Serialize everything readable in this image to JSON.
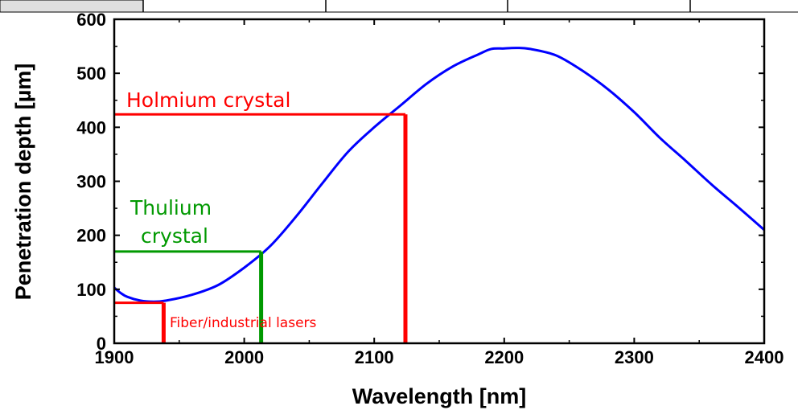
{
  "chart_data": {
    "type": "line",
    "title": "",
    "xlabel": "Wavelength [nm]",
    "ylabel": "Penetration depth [µm]",
    "xlim": [
      1900,
      2400
    ],
    "ylim": [
      0,
      600
    ],
    "xticks": [
      1900,
      2000,
      2100,
      2200,
      2300,
      2400
    ],
    "yticks": [
      0,
      100,
      200,
      300,
      400,
      500,
      600
    ],
    "grid": false,
    "legend": "none",
    "series": [
      {
        "color": "#0000ff",
        "x": [
          1900,
          1905,
          1910,
          1920,
          1930,
          1940,
          1960,
          1980,
          2000,
          2020,
          2040,
          2060,
          2080,
          2100,
          2120,
          2140,
          2160,
          2180,
          2190,
          2200,
          2210,
          2220,
          2240,
          2260,
          2280,
          2300,
          2320,
          2340,
          2360,
          2380,
          2400
        ],
        "y": [
          103,
          93,
          86,
          79,
          77,
          79,
          90,
          108,
          140,
          180,
          235,
          296,
          355,
          400,
          440,
          480,
          512,
          535,
          545,
          546,
          547,
          545,
          533,
          505,
          470,
          428,
          380,
          337,
          293,
          252,
          210
        ]
      }
    ],
    "annotations": [
      {
        "text": "Holmium crystal",
        "x": 2124,
        "y": 424,
        "color": "#ff0000"
      },
      {
        "text": "Thulium crystal",
        "x": 2013,
        "y": 170,
        "color": "#009900"
      },
      {
        "text": "Fiber/industrial lasers",
        "x": 1938,
        "y": 75,
        "color": "#ff0000"
      }
    ],
    "annotation_lines": {
      "thulium_label_lines": [
        "Thulium",
        "crystal"
      ]
    }
  },
  "colors": {
    "curve": "#0000ff",
    "holmium": "#ff0000",
    "thulium": "#009900",
    "fiber": "#ff0000",
    "header_cell": "#e0e0e0"
  }
}
